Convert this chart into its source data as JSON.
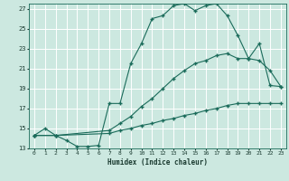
{
  "xlabel": "Humidex (Indice chaleur)",
  "bg_color": "#cce8e0",
  "grid_color": "#ffffff",
  "line_color": "#1a6b5a",
  "xlim": [
    -0.5,
    23.5
  ],
  "ylim": [
    13,
    27.5
  ],
  "xticks": [
    0,
    1,
    2,
    3,
    4,
    5,
    6,
    7,
    8,
    9,
    10,
    11,
    12,
    13,
    14,
    15,
    16,
    17,
    18,
    19,
    20,
    21,
    22,
    23
  ],
  "yticks": [
    13,
    15,
    17,
    19,
    21,
    23,
    25,
    27
  ],
  "line1_x": [
    0,
    1,
    2,
    3,
    4,
    5,
    6,
    7,
    8,
    9,
    10,
    11,
    12,
    13,
    14,
    15,
    16,
    17,
    18,
    19,
    20,
    21,
    22,
    23
  ],
  "line1_y": [
    14.3,
    15.0,
    14.3,
    13.8,
    13.2,
    13.2,
    13.3,
    17.5,
    17.5,
    21.5,
    23.5,
    26.0,
    26.3,
    27.3,
    27.5,
    26.8,
    27.3,
    27.5,
    26.3,
    24.3,
    22.0,
    23.5,
    19.3,
    19.2
  ],
  "line2_x": [
    0,
    2,
    7,
    8,
    9,
    10,
    11,
    12,
    13,
    14,
    15,
    16,
    17,
    18,
    19,
    20,
    21,
    22,
    23
  ],
  "line2_y": [
    14.3,
    14.3,
    14.8,
    15.5,
    16.2,
    17.2,
    18.0,
    19.0,
    20.0,
    20.8,
    21.5,
    21.8,
    22.3,
    22.5,
    22.0,
    22.0,
    21.8,
    20.8,
    19.2
  ],
  "line3_x": [
    0,
    2,
    7,
    8,
    9,
    10,
    11,
    12,
    13,
    14,
    15,
    16,
    17,
    18,
    19,
    20,
    21,
    22,
    23
  ],
  "line3_y": [
    14.3,
    14.3,
    14.5,
    14.8,
    15.0,
    15.3,
    15.5,
    15.8,
    16.0,
    16.3,
    16.5,
    16.8,
    17.0,
    17.3,
    17.5,
    17.5,
    17.5,
    17.5,
    17.5
  ]
}
